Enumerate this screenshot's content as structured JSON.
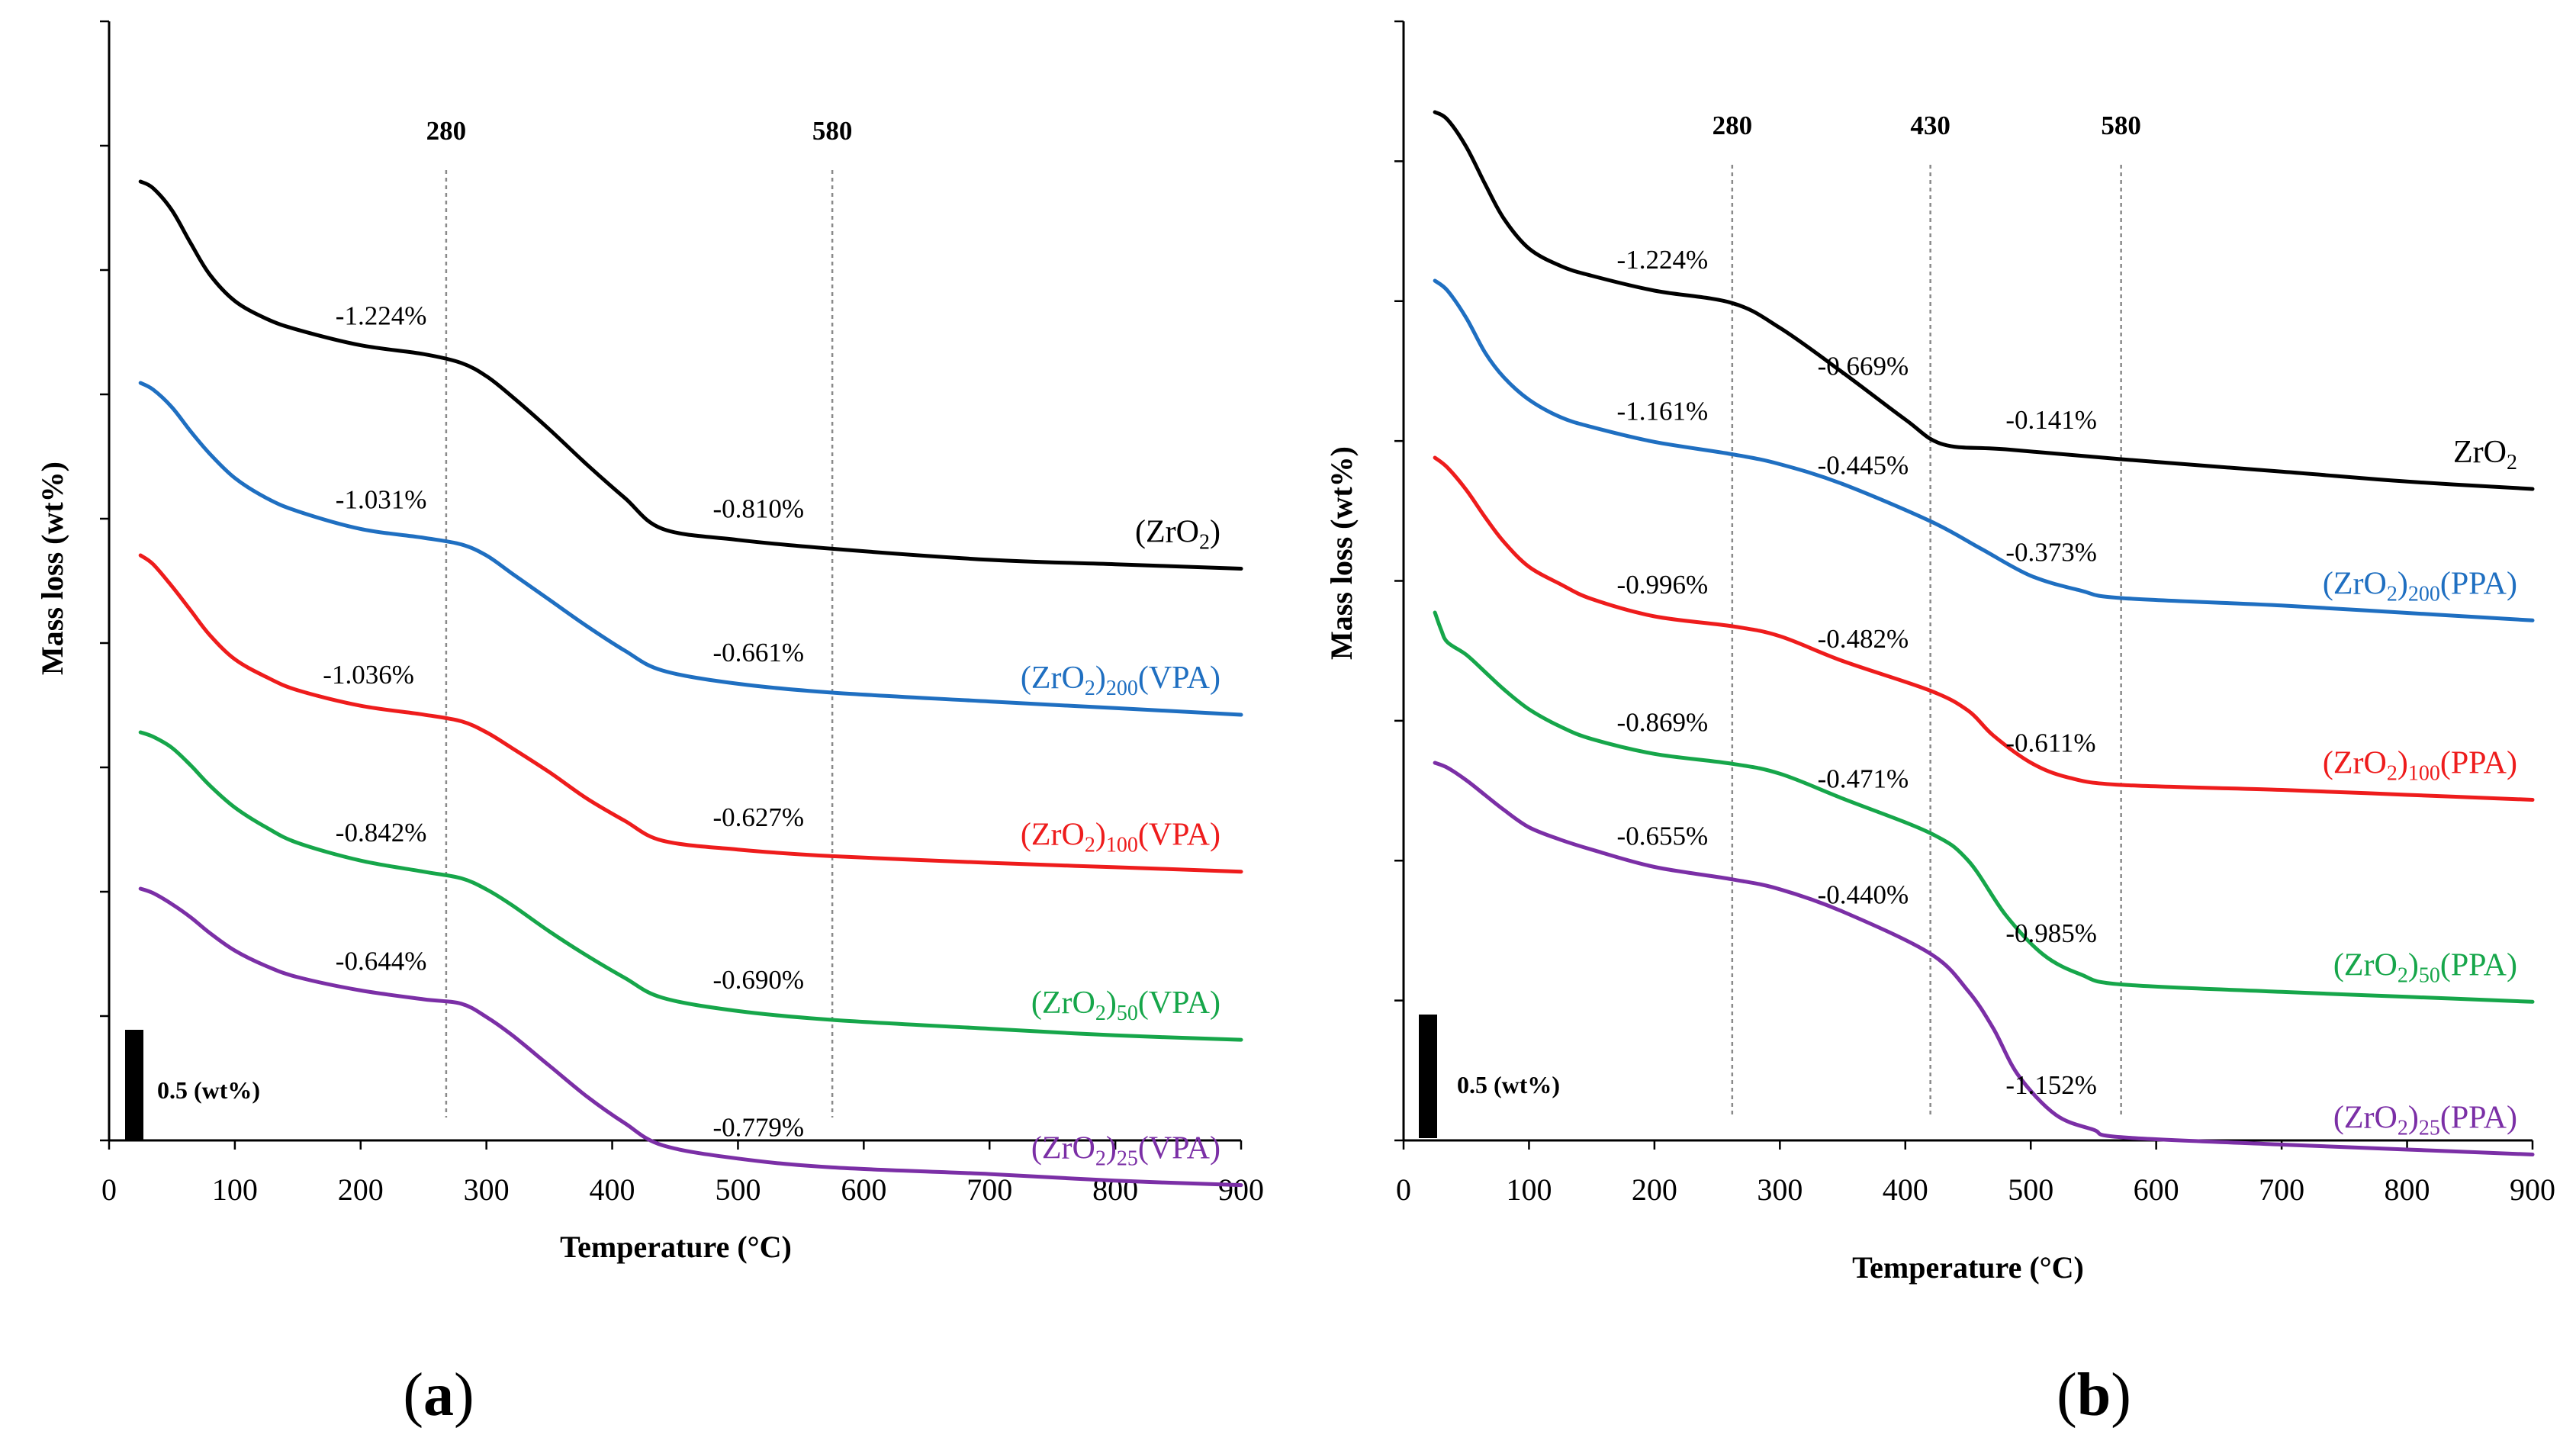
{
  "chart_data": [
    {
      "panel": "a",
      "panel_label_prefix": "(",
      "panel_label_letter": "a",
      "panel_label_suffix": ")",
      "type": "line",
      "xlabel": "Temperature (°C)",
      "ylabel": "Mass loss (wt%)",
      "xlim": [
        0,
        900
      ],
      "xticks": [
        0,
        100,
        200,
        300,
        400,
        500,
        600,
        700,
        800,
        900
      ],
      "y_tick_count": 10,
      "scale_bar": "0.5 (wt%)",
      "scale_bar_value_wt": 0.5,
      "markers": [
        {
          "label": "280",
          "x": 268
        },
        {
          "label": "580",
          "x": 575
        }
      ],
      "series": [
        {
          "name_base": "(ZrO",
          "name_sub1": "2",
          "name_mid": ")",
          "name_sub2": "",
          "name_tail": "",
          "color": "#000000",
          "x": [
            25,
            35,
            50,
            65,
            80,
            100,
            125,
            150,
            200,
            250,
            280,
            300,
            320,
            350,
            380,
            410,
            440,
            500,
            575,
            700,
            800,
            900
          ],
          "y": [
            0.0,
            -0.03,
            -0.13,
            -0.28,
            -0.42,
            -0.54,
            -0.62,
            -0.67,
            -0.74,
            -0.78,
            -0.82,
            -0.88,
            -0.97,
            -1.12,
            -1.28,
            -1.43,
            -1.57,
            -1.62,
            -1.66,
            -1.71,
            -1.73,
            -1.75
          ],
          "labels": [
            {
              "text": "-1.224%",
              "x": 180
            },
            {
              "text": "-0.810%",
              "x": 480
            }
          ]
        },
        {
          "name_base": "(ZrO",
          "name_sub1": "2",
          "name_mid": ")",
          "name_sub2": "200",
          "name_tail": "(VPA)",
          "color": "#1f6fc1",
          "x": [
            25,
            35,
            50,
            65,
            80,
            100,
            125,
            150,
            200,
            250,
            280,
            300,
            320,
            350,
            380,
            410,
            440,
            500,
            575,
            700,
            800,
            900
          ],
          "y": [
            0.0,
            -0.03,
            -0.11,
            -0.22,
            -0.32,
            -0.43,
            -0.52,
            -0.58,
            -0.66,
            -0.7,
            -0.73,
            -0.78,
            -0.86,
            -0.98,
            -1.1,
            -1.21,
            -1.3,
            -1.36,
            -1.4,
            -1.44,
            -1.47,
            -1.5
          ],
          "labels": [
            {
              "text": "-1.031%",
              "x": 180
            },
            {
              "text": "-0.661%",
              "x": 480
            }
          ]
        },
        {
          "name_base": "(ZrO",
          "name_sub1": "2",
          "name_mid": ")",
          "name_sub2": "100",
          "name_tail": "(VPA)",
          "color": "#ee1c1c",
          "x": [
            25,
            35,
            50,
            65,
            80,
            100,
            125,
            150,
            200,
            250,
            280,
            300,
            320,
            350,
            380,
            410,
            440,
            500,
            575,
            700,
            800,
            900
          ],
          "y": [
            0.0,
            -0.04,
            -0.14,
            -0.25,
            -0.36,
            -0.47,
            -0.55,
            -0.61,
            -0.68,
            -0.72,
            -0.75,
            -0.8,
            -0.87,
            -0.98,
            -1.1,
            -1.2,
            -1.29,
            -1.33,
            -1.36,
            -1.39,
            -1.41,
            -1.43
          ],
          "labels": [
            {
              "text": "-1.036%",
              "x": 170
            },
            {
              "text": "-0.627%",
              "x": 480
            }
          ]
        },
        {
          "name_base": "(ZrO",
          "name_sub1": "2",
          "name_mid": ")",
          "name_sub2": "50",
          "name_tail": "(VPA)",
          "color": "#16a64a",
          "x": [
            25,
            35,
            50,
            65,
            80,
            100,
            125,
            150,
            200,
            250,
            280,
            300,
            320,
            350,
            380,
            410,
            440,
            500,
            575,
            700,
            800,
            900
          ],
          "y": [
            0.0,
            -0.02,
            -0.07,
            -0.15,
            -0.24,
            -0.34,
            -0.43,
            -0.5,
            -0.58,
            -0.63,
            -0.66,
            -0.71,
            -0.78,
            -0.9,
            -1.01,
            -1.11,
            -1.2,
            -1.26,
            -1.3,
            -1.34,
            -1.37,
            -1.39
          ],
          "labels": [
            {
              "text": "-0.842%",
              "x": 180
            },
            {
              "text": "-0.690%",
              "x": 480
            }
          ]
        },
        {
          "name_base": "(ZrO",
          "name_sub1": "2",
          "name_mid": ")",
          "name_sub2": "25",
          "name_tail": "(VPA)",
          "color": "#7b2fa6",
          "x": [
            25,
            35,
            50,
            65,
            80,
            100,
            125,
            150,
            200,
            250,
            280,
            300,
            320,
            350,
            380,
            410,
            440,
            500,
            575,
            700,
            800,
            900
          ],
          "y": [
            0.0,
            -0.02,
            -0.07,
            -0.13,
            -0.2,
            -0.28,
            -0.35,
            -0.4,
            -0.46,
            -0.5,
            -0.52,
            -0.58,
            -0.66,
            -0.8,
            -0.94,
            -1.06,
            -1.16,
            -1.22,
            -1.26,
            -1.29,
            -1.32,
            -1.34
          ],
          "labels": [
            {
              "text": "-0.644%",
              "x": 180
            },
            {
              "text": "-0.779%",
              "x": 480
            }
          ]
        }
      ]
    },
    {
      "panel": "b",
      "panel_label_prefix": "(",
      "panel_label_letter": "b",
      "panel_label_suffix": ")",
      "type": "line",
      "xlabel": "Temperature (°C)",
      "ylabel": "Mass loss (wt%)",
      "xlim": [
        0,
        900
      ],
      "xticks": [
        0,
        100,
        200,
        300,
        400,
        500,
        600,
        700,
        800,
        900
      ],
      "y_tick_count": 9,
      "scale_bar": "0.5 (wt%)",
      "scale_bar_value_wt": 0.5,
      "markers": [
        {
          "label": "280",
          "x": 262
        },
        {
          "label": "430",
          "x": 420
        },
        {
          "label": "580",
          "x": 572
        }
      ],
      "series": [
        {
          "name_base": "ZrO",
          "name_sub1": "2",
          "name_mid": "",
          "name_sub2": "",
          "name_tail": "",
          "color": "#000000",
          "x": [
            25,
            35,
            50,
            65,
            80,
            100,
            125,
            150,
            200,
            262,
            300,
            350,
            400,
            430,
            480,
            572,
            700,
            800,
            900
          ],
          "y": [
            0.0,
            -0.03,
            -0.14,
            -0.29,
            -0.43,
            -0.55,
            -0.62,
            -0.66,
            -0.72,
            -0.77,
            -0.87,
            -1.05,
            -1.24,
            -1.34,
            -1.36,
            -1.4,
            -1.45,
            -1.49,
            -1.52
          ],
          "labels": [
            {
              "text": "-1.224%",
              "x": 170
            },
            {
              "text": "-0.669%",
              "x": 330
            },
            {
              "text": "-0.141%",
              "x": 480
            }
          ]
        },
        {
          "name_base": "(ZrO",
          "name_sub1": "2",
          "name_mid": ")",
          "name_sub2": "200",
          "name_tail": "(PPA)",
          "color": "#1f6fc1",
          "x": [
            25,
            35,
            50,
            65,
            80,
            100,
            125,
            150,
            200,
            262,
            300,
            350,
            420,
            460,
            500,
            540,
            572,
            700,
            800,
            900
          ],
          "y": [
            0.0,
            -0.04,
            -0.15,
            -0.29,
            -0.39,
            -0.48,
            -0.55,
            -0.59,
            -0.65,
            -0.7,
            -0.74,
            -0.82,
            -0.97,
            -1.08,
            -1.19,
            -1.25,
            -1.28,
            -1.31,
            -1.34,
            -1.37
          ],
          "labels": [
            {
              "text": "-1.161%",
              "x": 170
            },
            {
              "text": "-0.445%",
              "x": 330
            },
            {
              "text": "-0.373%",
              "x": 480
            }
          ]
        },
        {
          "name_base": "(ZrO",
          "name_sub1": "2",
          "name_mid": ")",
          "name_sub2": "100",
          "name_tail": "(PPA)",
          "color": "#ee1c1c",
          "x": [
            25,
            35,
            50,
            65,
            80,
            100,
            125,
            150,
            200,
            262,
            300,
            350,
            420,
            450,
            470,
            500,
            530,
            572,
            700,
            800,
            900
          ],
          "y": [
            0.0,
            -0.04,
            -0.13,
            -0.24,
            -0.34,
            -0.44,
            -0.51,
            -0.57,
            -0.64,
            -0.68,
            -0.72,
            -0.82,
            -0.94,
            -1.02,
            -1.12,
            -1.23,
            -1.29,
            -1.32,
            -1.34,
            -1.36,
            -1.38
          ],
          "labels": [
            {
              "text": "-0.996%",
              "x": 170
            },
            {
              "text": "-0.482%",
              "x": 330
            },
            {
              "text": "-0.611%",
              "x": 480
            }
          ]
        },
        {
          "name_base": "(ZrO",
          "name_sub1": "2",
          "name_mid": ")",
          "name_sub2": "50",
          "name_tail": "(PPA)",
          "color": "#16a64a",
          "x": [
            25,
            30,
            35,
            50,
            65,
            80,
            100,
            125,
            150,
            200,
            262,
            300,
            350,
            420,
            450,
            480,
            510,
            540,
            572,
            700,
            800,
            900
          ],
          "y": [
            0.0,
            -0.07,
            -0.12,
            -0.17,
            -0.24,
            -0.31,
            -0.39,
            -0.46,
            -0.51,
            -0.57,
            -0.61,
            -0.65,
            -0.75,
            -0.89,
            -1.0,
            -1.22,
            -1.38,
            -1.46,
            -1.5,
            -1.53,
            -1.55,
            -1.57
          ],
          "labels": [
            {
              "text": "-0.869%",
              "x": 170
            },
            {
              "text": "-0.471%",
              "x": 330
            },
            {
              "text": "-0.985%",
              "x": 480
            }
          ]
        },
        {
          "name_base": "(ZrO",
          "name_sub1": "2",
          "name_mid": ")",
          "name_sub2": "25",
          "name_tail": "(PPA)",
          "color": "#7b2fa6",
          "x": [
            25,
            35,
            50,
            65,
            80,
            100,
            125,
            150,
            200,
            262,
            300,
            350,
            420,
            450,
            470,
            490,
            520,
            550,
            572,
            700,
            800,
            900
          ],
          "y": [
            0.0,
            -0.02,
            -0.07,
            -0.13,
            -0.19,
            -0.26,
            -0.31,
            -0.35,
            -0.42,
            -0.47,
            -0.51,
            -0.6,
            -0.77,
            -0.92,
            -1.07,
            -1.26,
            -1.42,
            -1.48,
            -1.51,
            -1.54,
            -1.56,
            -1.58
          ],
          "labels": [
            {
              "text": "-0.655%",
              "x": 170
            },
            {
              "text": "-0.440%",
              "x": 330
            },
            {
              "text": "-1.152%",
              "x": 480
            }
          ]
        }
      ]
    }
  ]
}
